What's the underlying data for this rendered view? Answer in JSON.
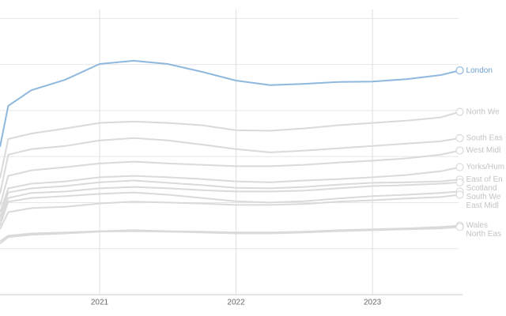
{
  "chart_data": {
    "type": "line",
    "x": [
      2020.27,
      2020.33,
      2020.5,
      2020.75,
      2021,
      2021.25,
      2021.5,
      2021.75,
      2022,
      2022.25,
      2022.5,
      2022.75,
      2023,
      2023.25,
      2023.5,
      2023.64
    ],
    "xlim": [
      2020.27,
      2023.66
    ],
    "xticks": [
      2021,
      2022,
      2023
    ],
    "ylim": [
      0,
      6.4
    ],
    "ygrid": [
      1,
      2,
      3,
      4,
      5,
      6
    ],
    "grid": true,
    "series": [
      {
        "name": "London",
        "color": "#8fb8de",
        "label_color": "#6f9fd0",
        "values": [
          3.21,
          4.1,
          4.44,
          4.67,
          5.01,
          5.08,
          5.01,
          4.84,
          4.65,
          4.55,
          4.58,
          4.62,
          4.63,
          4.68,
          4.77,
          4.87
        ]
      },
      {
        "name": "North We",
        "color": "#dadada",
        "label_color": "#c4c4c4",
        "values": [
          2.53,
          3.38,
          3.5,
          3.61,
          3.73,
          3.76,
          3.73,
          3.68,
          3.57,
          3.56,
          3.61,
          3.68,
          3.73,
          3.78,
          3.85,
          3.97
        ]
      },
      {
        "name": "South Eas",
        "color": "#dadada",
        "label_color": "#c4c4c4",
        "values": [
          2.19,
          3.04,
          3.16,
          3.23,
          3.35,
          3.4,
          3.35,
          3.26,
          3.16,
          3.09,
          3.13,
          3.18,
          3.23,
          3.28,
          3.33,
          3.4
        ]
      },
      {
        "name": "West Midl",
        "color": "#dadada",
        "label_color": "#c4c4c4",
        "values": [
          1.93,
          2.58,
          2.7,
          2.77,
          2.85,
          2.89,
          2.85,
          2.82,
          2.79,
          2.79,
          2.82,
          2.87,
          2.91,
          2.96,
          3.04,
          3.13
        ]
      },
      {
        "name": "Yorks/Hum",
        "color": "#dadada",
        "label_color": "#c4c4c4",
        "values": [
          1.79,
          2.31,
          2.41,
          2.46,
          2.55,
          2.58,
          2.55,
          2.51,
          2.46,
          2.44,
          2.48,
          2.51,
          2.55,
          2.6,
          2.68,
          2.77
        ]
      },
      {
        "name": "East of En",
        "color": "#dadada",
        "label_color": "#c4c4c4",
        "values": [
          1.68,
          2.22,
          2.31,
          2.36,
          2.44,
          2.48,
          2.43,
          2.38,
          2.32,
          2.31,
          2.34,
          2.39,
          2.43,
          2.44,
          2.46,
          2.5
        ]
      },
      {
        "name": "Scotland",
        "color": "#dadada",
        "label_color": "#c4c4c4",
        "values": [
          1.59,
          2.1,
          2.21,
          2.24,
          2.31,
          2.34,
          2.31,
          2.27,
          2.24,
          2.24,
          2.26,
          2.31,
          2.36,
          2.38,
          2.41,
          2.44
        ]
      },
      {
        "name": "South We",
        "color": "#dadada",
        "label_color": "#c4c4c4",
        "values": [
          1.5,
          2.02,
          2.1,
          2.14,
          2.19,
          2.22,
          2.17,
          2.1,
          2.03,
          2.0,
          2.03,
          2.09,
          2.14,
          2.17,
          2.21,
          2.24
        ]
      },
      {
        "name": "East Midl",
        "color": "#dadada",
        "label_color": "#c4c4c4",
        "values": [
          1.42,
          1.79,
          1.88,
          1.91,
          1.98,
          2.02,
          2.0,
          1.98,
          1.95,
          1.95,
          1.97,
          2.02,
          2.05,
          2.09,
          2.12,
          2.17
        ]
      },
      {
        "name": "Wales",
        "color": "#dadada",
        "label_color": "#c4c4c4",
        "values": [
          1.16,
          1.28,
          1.33,
          1.35,
          1.38,
          1.4,
          1.38,
          1.37,
          1.35,
          1.35,
          1.37,
          1.4,
          1.42,
          1.44,
          1.47,
          1.5
        ]
      },
      {
        "name": "North Eas",
        "color": "#dadada",
        "label_color": "#c4c4c4",
        "values": [
          1.11,
          1.25,
          1.3,
          1.33,
          1.37,
          1.38,
          1.37,
          1.35,
          1.33,
          1.33,
          1.35,
          1.38,
          1.4,
          1.42,
          1.44,
          1.47
        ]
      }
    ]
  }
}
